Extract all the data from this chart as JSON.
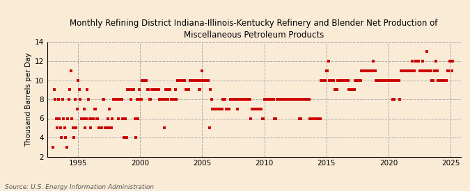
{
  "title": "Monthly Refining District Indiana-Illinois-Kentucky Refinery and Blender Net Production of\nMiscellaneous Petroleum Products",
  "ylabel": "Thousand Barrels per Day",
  "source": "Source: U.S. Energy Information Administration",
  "background_color": "#faebd7",
  "marker_color": "#cc0000",
  "xlim": [
    1992.5,
    2025.8
  ],
  "ylim": [
    2,
    14
  ],
  "yticks": [
    2,
    4,
    6,
    8,
    10,
    12,
    14
  ],
  "xticks": [
    1995,
    2000,
    2005,
    2010,
    2015,
    2020,
    2025
  ],
  "data": {
    "dates": [
      1993.0,
      1993.08,
      1993.17,
      1993.25,
      1993.33,
      1993.42,
      1993.5,
      1993.58,
      1993.67,
      1993.75,
      1993.83,
      1993.92,
      1994.0,
      1994.08,
      1994.17,
      1994.25,
      1994.33,
      1994.42,
      1994.5,
      1994.58,
      1994.67,
      1994.75,
      1994.83,
      1994.92,
      1995.0,
      1995.08,
      1995.17,
      1995.25,
      1995.33,
      1995.42,
      1995.5,
      1995.58,
      1995.67,
      1995.75,
      1995.83,
      1995.92,
      1996.0,
      1996.08,
      1996.17,
      1996.25,
      1996.33,
      1996.42,
      1996.5,
      1996.58,
      1996.67,
      1996.75,
      1996.83,
      1996.92,
      1997.0,
      1997.08,
      1997.17,
      1997.25,
      1997.33,
      1997.42,
      1997.5,
      1997.58,
      1997.67,
      1997.75,
      1997.83,
      1997.92,
      1998.0,
      1998.08,
      1998.17,
      1998.25,
      1998.33,
      1998.42,
      1998.5,
      1998.58,
      1998.67,
      1998.75,
      1998.83,
      1998.92,
      1999.0,
      1999.08,
      1999.17,
      1999.25,
      1999.33,
      1999.42,
      1999.5,
      1999.58,
      1999.67,
      1999.75,
      1999.83,
      1999.92,
      2000.0,
      2000.08,
      2000.17,
      2000.25,
      2000.33,
      2000.42,
      2000.5,
      2000.58,
      2000.67,
      2000.75,
      2000.83,
      2000.92,
      2001.0,
      2001.08,
      2001.17,
      2001.25,
      2001.33,
      2001.42,
      2001.5,
      2001.58,
      2001.67,
      2001.75,
      2001.83,
      2001.92,
      2002.0,
      2002.08,
      2002.17,
      2002.25,
      2002.33,
      2002.42,
      2002.5,
      2002.58,
      2002.67,
      2002.75,
      2002.83,
      2002.92,
      2003.0,
      2003.08,
      2003.17,
      2003.25,
      2003.33,
      2003.42,
      2003.5,
      2003.58,
      2003.67,
      2003.75,
      2003.83,
      2003.92,
      2004.0,
      2004.08,
      2004.17,
      2004.25,
      2004.33,
      2004.42,
      2004.5,
      2004.58,
      2004.67,
      2004.75,
      2004.83,
      2004.92,
      2005.0,
      2005.08,
      2005.17,
      2005.25,
      2005.33,
      2005.42,
      2005.5,
      2005.58,
      2005.67,
      2005.75,
      2005.83,
      2005.92,
      2006.0,
      2006.08,
      2006.17,
      2006.25,
      2006.33,
      2006.42,
      2006.5,
      2006.58,
      2006.67,
      2006.75,
      2006.83,
      2006.92,
      2007.0,
      2007.08,
      2007.17,
      2007.25,
      2007.33,
      2007.42,
      2007.5,
      2007.58,
      2007.67,
      2007.75,
      2007.83,
      2007.92,
      2008.0,
      2008.08,
      2008.17,
      2008.25,
      2008.33,
      2008.42,
      2008.5,
      2008.58,
      2008.67,
      2008.75,
      2008.83,
      2008.92,
      2009.0,
      2009.08,
      2009.17,
      2009.25,
      2009.33,
      2009.42,
      2009.5,
      2009.58,
      2009.67,
      2009.75,
      2009.83,
      2009.92,
      2010.0,
      2010.08,
      2010.17,
      2010.25,
      2010.33,
      2010.42,
      2010.5,
      2010.58,
      2010.67,
      2010.75,
      2010.83,
      2010.92,
      2011.0,
      2011.08,
      2011.17,
      2011.25,
      2011.33,
      2011.42,
      2011.5,
      2011.58,
      2011.67,
      2011.75,
      2011.83,
      2011.92,
      2012.0,
      2012.08,
      2012.17,
      2012.25,
      2012.33,
      2012.42,
      2012.5,
      2012.58,
      2012.67,
      2012.75,
      2012.83,
      2012.92,
      2013.0,
      2013.08,
      2013.17,
      2013.25,
      2013.33,
      2013.42,
      2013.5,
      2013.58,
      2013.67,
      2013.75,
      2013.83,
      2013.92,
      2014.0,
      2014.08,
      2014.17,
      2014.25,
      2014.33,
      2014.42,
      2014.5,
      2014.58,
      2014.67,
      2014.75,
      2014.83,
      2014.92,
      2015.0,
      2015.08,
      2015.17,
      2015.25,
      2015.33,
      2015.42,
      2015.5,
      2015.58,
      2015.67,
      2015.75,
      2015.83,
      2015.92,
      2016.0,
      2016.08,
      2016.17,
      2016.25,
      2016.33,
      2016.42,
      2016.5,
      2016.58,
      2016.67,
      2016.75,
      2016.83,
      2016.92,
      2017.0,
      2017.08,
      2017.17,
      2017.25,
      2017.33,
      2017.42,
      2017.5,
      2017.58,
      2017.67,
      2017.75,
      2017.83,
      2017.92,
      2018.0,
      2018.08,
      2018.17,
      2018.25,
      2018.33,
      2018.42,
      2018.5,
      2018.58,
      2018.67,
      2018.75,
      2018.83,
      2018.92,
      2019.0,
      2019.08,
      2019.17,
      2019.25,
      2019.33,
      2019.42,
      2019.5,
      2019.58,
      2019.67,
      2019.75,
      2019.83,
      2019.92,
      2020.0,
      2020.08,
      2020.17,
      2020.25,
      2020.33,
      2020.42,
      2020.5,
      2020.58,
      2020.67,
      2020.75,
      2020.83,
      2020.92,
      2021.0,
      2021.08,
      2021.17,
      2021.25,
      2021.33,
      2021.42,
      2021.5,
      2021.58,
      2021.67,
      2021.75,
      2021.83,
      2021.92,
      2022.0,
      2022.08,
      2022.17,
      2022.25,
      2022.33,
      2022.42,
      2022.5,
      2022.58,
      2022.67,
      2022.75,
      2022.83,
      2022.92,
      2023.0,
      2023.08,
      2023.17,
      2023.25,
      2023.33,
      2023.42,
      2023.5,
      2023.58,
      2023.67,
      2023.75,
      2023.83,
      2023.92,
      2024.0,
      2024.08,
      2024.17,
      2024.25,
      2024.33,
      2024.42,
      2024.5,
      2024.58,
      2024.67,
      2024.75,
      2024.83,
      2024.92,
      2025.0,
      2025.08,
      2025.17
    ],
    "values": [
      3,
      9,
      8,
      6,
      5,
      8,
      6,
      5,
      4,
      8,
      6,
      5,
      4,
      3,
      6,
      8,
      9,
      11,
      6,
      5,
      4,
      8,
      5,
      7,
      10,
      9,
      8,
      6,
      6,
      6,
      7,
      5,
      6,
      9,
      8,
      6,
      5,
      6,
      6,
      6,
      7,
      7,
      6,
      6,
      5,
      5,
      5,
      5,
      8,
      8,
      5,
      5,
      5,
      6,
      7,
      5,
      5,
      6,
      8,
      8,
      8,
      8,
      8,
      6,
      8,
      8,
      8,
      6,
      4,
      4,
      6,
      4,
      9,
      9,
      9,
      8,
      9,
      9,
      9,
      6,
      4,
      8,
      6,
      9,
      8,
      8,
      10,
      10,
      10,
      10,
      10,
      9,
      9,
      8,
      8,
      9,
      9,
      9,
      9,
      9,
      9,
      9,
      9,
      8,
      8,
      8,
      8,
      5,
      8,
      9,
      9,
      8,
      9,
      9,
      8,
      8,
      8,
      8,
      9,
      8,
      10,
      10,
      10,
      10,
      10,
      10,
      10,
      10,
      9,
      9,
      9,
      9,
      10,
      10,
      10,
      10,
      10,
      10,
      10,
      10,
      10,
      9,
      9,
      10,
      11,
      10,
      10,
      10,
      10,
      10,
      10,
      5,
      9,
      8,
      7,
      7,
      7,
      7,
      7,
      7,
      7,
      7,
      7,
      7,
      8,
      8,
      8,
      7,
      7,
      7,
      7,
      8,
      8,
      8,
      8,
      8,
      8,
      8,
      7,
      8,
      8,
      8,
      8,
      8,
      8,
      8,
      8,
      8,
      8,
      8,
      8,
      6,
      7,
      7,
      7,
      7,
      7,
      7,
      7,
      7,
      7,
      7,
      6,
      6,
      8,
      8,
      8,
      8,
      8,
      8,
      8,
      8,
      8,
      8,
      6,
      6,
      8,
      8,
      8,
      8,
      8,
      8,
      8,
      8,
      8,
      8,
      8,
      8,
      8,
      8,
      8,
      8,
      8,
      8,
      8,
      8,
      8,
      8,
      6,
      6,
      8,
      8,
      8,
      8,
      8,
      8,
      8,
      8,
      6,
      6,
      6,
      6,
      6,
      6,
      6,
      6,
      6,
      6,
      6,
      10,
      10,
      10,
      10,
      10,
      11,
      11,
      12,
      10,
      10,
      10,
      10,
      10,
      9,
      9,
      9,
      10,
      10,
      10,
      10,
      10,
      10,
      10,
      10,
      10,
      10,
      10,
      9,
      9,
      9,
      9,
      9,
      9,
      10,
      10,
      10,
      10,
      10,
      10,
      11,
      11,
      11,
      11,
      11,
      11,
      11,
      11,
      11,
      11,
      11,
      12,
      11,
      11,
      10,
      10,
      10,
      10,
      10,
      10,
      10,
      10,
      10,
      10,
      10,
      10,
      10,
      10,
      10,
      10,
      8,
      8,
      10,
      10,
      10,
      10,
      10,
      8,
      11,
      11,
      11,
      11,
      11,
      11,
      11,
      11,
      11,
      11,
      11,
      12,
      11,
      11,
      12,
      12,
      12,
      12,
      11,
      11,
      11,
      12,
      11,
      11,
      11,
      13,
      11,
      11,
      11,
      11,
      10,
      10,
      11,
      11,
      12,
      11,
      10,
      10,
      10,
      10,
      10,
      10,
      10,
      10,
      10,
      11,
      11,
      12,
      12,
      11,
      12
    ]
  }
}
